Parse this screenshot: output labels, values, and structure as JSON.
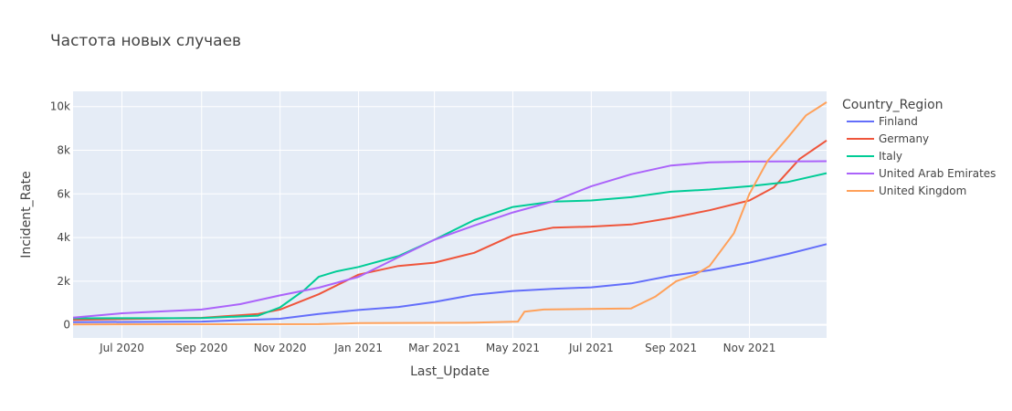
{
  "chart_data": {
    "type": "line",
    "title": "Частота новых случаев",
    "xlabel": "Last_Update",
    "ylabel": "Incident_Rate",
    "xlim": [
      "2020-05-24",
      "2021-12-31"
    ],
    "ylim": [
      -600,
      10700
    ],
    "x_ticks": [
      {
        "date": "2020-07-01",
        "label": "Jul 2020"
      },
      {
        "date": "2020-09-01",
        "label": "Sep 2020"
      },
      {
        "date": "2020-11-01",
        "label": "Nov 2020"
      },
      {
        "date": "2021-01-01",
        "label": "Jan 2021"
      },
      {
        "date": "2021-03-01",
        "label": "Mar 2021"
      },
      {
        "date": "2021-05-01",
        "label": "May 2021"
      },
      {
        "date": "2021-07-01",
        "label": "Jul 2021"
      },
      {
        "date": "2021-09-01",
        "label": "Sep 2021"
      },
      {
        "date": "2021-11-01",
        "label": "Nov 2021"
      }
    ],
    "y_ticks": [
      {
        "value": 0,
        "label": "0"
      },
      {
        "value": 2000,
        "label": "2k"
      },
      {
        "value": 4000,
        "label": "4k"
      },
      {
        "value": 6000,
        "label": "6k"
      },
      {
        "value": 8000,
        "label": "8k"
      },
      {
        "value": 10000,
        "label": "10k"
      }
    ],
    "grid": true,
    "legend_title": "Country_Region",
    "legend_position": "right",
    "series": [
      {
        "name": "Finland",
        "color": "#636efa",
        "points": [
          [
            "2020-05-24",
            120
          ],
          [
            "2020-09-01",
            150
          ],
          [
            "2020-11-01",
            280
          ],
          [
            "2020-12-01",
            500
          ],
          [
            "2021-01-01",
            680
          ],
          [
            "2021-02-01",
            820
          ],
          [
            "2021-03-01",
            1050
          ],
          [
            "2021-04-01",
            1380
          ],
          [
            "2021-05-01",
            1550
          ],
          [
            "2021-06-01",
            1650
          ],
          [
            "2021-07-01",
            1720
          ],
          [
            "2021-08-01",
            1900
          ],
          [
            "2021-09-01",
            2250
          ],
          [
            "2021-10-01",
            2500
          ],
          [
            "2021-11-01",
            2850
          ],
          [
            "2021-12-01",
            3250
          ],
          [
            "2021-12-31",
            3700
          ]
        ]
      },
      {
        "name": "Germany",
        "color": "#ef553b",
        "points": [
          [
            "2020-05-24",
            230
          ],
          [
            "2020-09-01",
            320
          ],
          [
            "2020-10-15",
            500
          ],
          [
            "2020-11-01",
            700
          ],
          [
            "2020-12-01",
            1400
          ],
          [
            "2021-01-01",
            2300
          ],
          [
            "2021-02-01",
            2700
          ],
          [
            "2021-03-01",
            2850
          ],
          [
            "2021-04-01",
            3300
          ],
          [
            "2021-05-01",
            4100
          ],
          [
            "2021-06-01",
            4450
          ],
          [
            "2021-07-01",
            4500
          ],
          [
            "2021-08-01",
            4600
          ],
          [
            "2021-09-01",
            4900
          ],
          [
            "2021-10-01",
            5250
          ],
          [
            "2021-11-01",
            5700
          ],
          [
            "2021-11-20",
            6300
          ],
          [
            "2021-12-10",
            7600
          ],
          [
            "2021-12-31",
            8450
          ]
        ]
      },
      {
        "name": "Italy",
        "color": "#00cc96",
        "points": [
          [
            "2020-05-24",
            300
          ],
          [
            "2020-09-01",
            310
          ],
          [
            "2020-10-15",
            420
          ],
          [
            "2020-11-01",
            800
          ],
          [
            "2020-11-20",
            1600
          ],
          [
            "2020-12-01",
            2200
          ],
          [
            "2020-12-15",
            2450
          ],
          [
            "2021-01-01",
            2650
          ],
          [
            "2021-02-01",
            3150
          ],
          [
            "2021-03-01",
            3900
          ],
          [
            "2021-04-01",
            4800
          ],
          [
            "2021-05-01",
            5400
          ],
          [
            "2021-06-01",
            5650
          ],
          [
            "2021-07-01",
            5700
          ],
          [
            "2021-08-01",
            5850
          ],
          [
            "2021-09-01",
            6100
          ],
          [
            "2021-10-01",
            6200
          ],
          [
            "2021-11-01",
            6350
          ],
          [
            "2021-12-01",
            6550
          ],
          [
            "2021-12-31",
            6950
          ]
        ]
      },
      {
        "name": "United Arab Emirates",
        "color": "#ab63fa",
        "points": [
          [
            "2020-05-24",
            330
          ],
          [
            "2020-07-01",
            530
          ],
          [
            "2020-09-01",
            700
          ],
          [
            "2020-10-01",
            950
          ],
          [
            "2020-11-01",
            1350
          ],
          [
            "2020-12-01",
            1700
          ],
          [
            "2021-01-01",
            2200
          ],
          [
            "2021-02-01",
            3100
          ],
          [
            "2021-03-01",
            3900
          ],
          [
            "2021-04-01",
            4550
          ],
          [
            "2021-05-01",
            5150
          ],
          [
            "2021-06-01",
            5650
          ],
          [
            "2021-07-01",
            6350
          ],
          [
            "2021-08-01",
            6900
          ],
          [
            "2021-09-01",
            7300
          ],
          [
            "2021-10-01",
            7450
          ],
          [
            "2021-11-01",
            7480
          ],
          [
            "2021-12-31",
            7500
          ]
        ]
      },
      {
        "name": "United Kingdom",
        "color": "#ffa15a",
        "points": [
          [
            "2020-05-24",
            20
          ],
          [
            "2020-12-01",
            30
          ],
          [
            "2021-01-01",
            80
          ],
          [
            "2021-04-01",
            100
          ],
          [
            "2021-05-05",
            150
          ],
          [
            "2021-05-10",
            600
          ],
          [
            "2021-05-25",
            700
          ],
          [
            "2021-08-01",
            750
          ],
          [
            "2021-08-20",
            1300
          ],
          [
            "2021-09-05",
            2000
          ],
          [
            "2021-09-20",
            2300
          ],
          [
            "2021-10-01",
            2700
          ],
          [
            "2021-10-20",
            4200
          ],
          [
            "2021-11-01",
            6000
          ],
          [
            "2021-11-15",
            7500
          ],
          [
            "2021-12-01",
            8600
          ],
          [
            "2021-12-15",
            9600
          ],
          [
            "2021-12-31",
            10200
          ]
        ]
      }
    ]
  }
}
